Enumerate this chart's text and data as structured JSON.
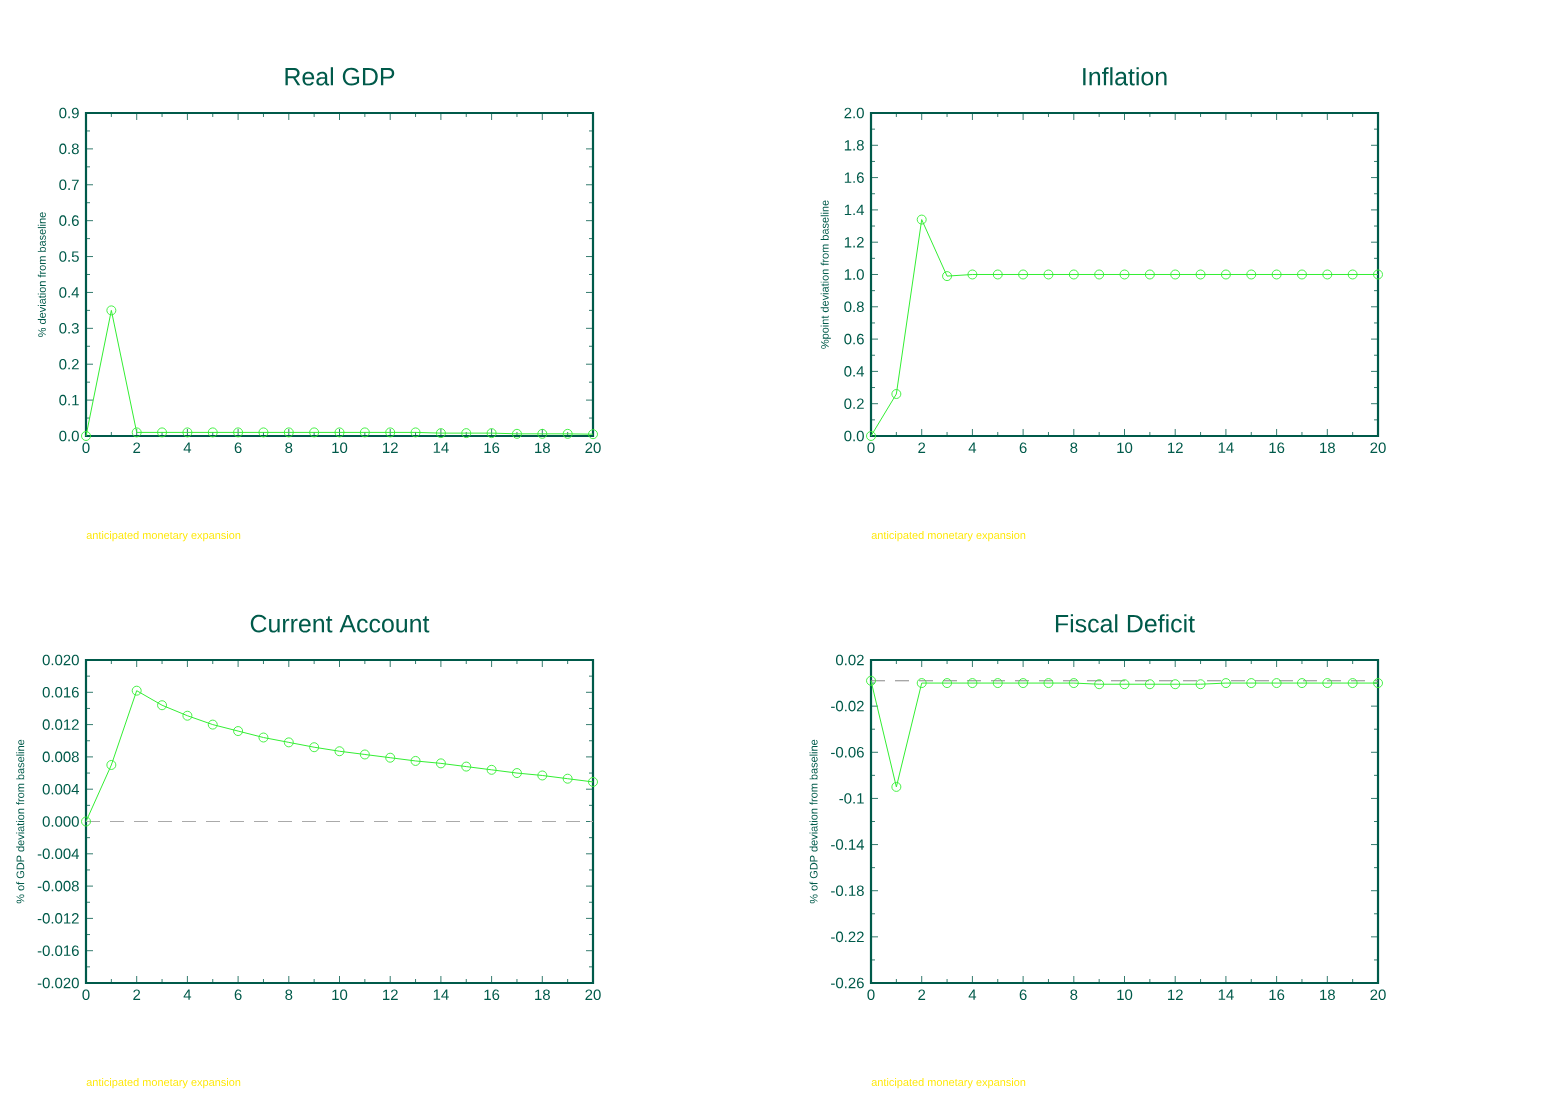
{
  "chart_data": [
    {
      "type": "line",
      "title": "Real GDP",
      "ylabel": "% deviation from baseline",
      "annotations": [
        "anticipated monetary expansion"
      ],
      "x": [
        0,
        1,
        2,
        3,
        4,
        5,
        6,
        7,
        8,
        9,
        10,
        11,
        12,
        13,
        14,
        15,
        16,
        17,
        18,
        19,
        20
      ],
      "series": [
        {
          "color": "#33ee33",
          "values": [
            0.0,
            0.35,
            0.01,
            0.01,
            0.01,
            0.01,
            0.01,
            0.01,
            0.01,
            0.01,
            0.01,
            0.01,
            0.01,
            0.01,
            0.008,
            0.008,
            0.008,
            0.006,
            0.006,
            0.006,
            0.005
          ]
        }
      ],
      "xlim": [
        0,
        20
      ],
      "xticks": [
        0,
        2,
        4,
        6,
        8,
        10,
        12,
        14,
        16,
        18,
        20
      ],
      "ylim": [
        0,
        0.9
      ],
      "yticks": [
        {
          "value": 0,
          "label": "0.0"
        },
        {
          "value": 0.1,
          "label": "0.1"
        },
        {
          "value": 0.2,
          "label": "0.2"
        },
        {
          "value": 0.3,
          "label": "0.3"
        },
        {
          "value": 0.4,
          "label": "0.4"
        },
        {
          "value": 0.5,
          "label": "0.5"
        },
        {
          "value": 0.6,
          "label": "0.6"
        },
        {
          "value": 0.7,
          "label": "0.7"
        },
        {
          "value": 0.8,
          "label": "0.8"
        },
        {
          "value": 0.9,
          "label": "0.9"
        }
      ],
      "marker": "circle"
    },
    {
      "type": "line",
      "title": "Inflation",
      "ylabel": "%point deviation from baseline",
      "annotations": [
        "anticipated monetary expansion"
      ],
      "x": [
        0,
        1,
        2,
        3,
        4,
        5,
        6,
        7,
        8,
        9,
        10,
        11,
        12,
        13,
        14,
        15,
        16,
        17,
        18,
        19,
        20
      ],
      "series": [
        {
          "color": "#33ee33",
          "values": [
            0.0,
            0.26,
            1.34,
            0.99,
            1.0,
            1.0,
            1.0,
            1.0,
            1.0,
            1.0,
            1.0,
            1.0,
            1.0,
            1.0,
            1.0,
            1.0,
            1.0,
            1.0,
            1.0,
            1.0,
            1.0
          ]
        }
      ],
      "xlim": [
        0,
        20
      ],
      "xticks": [
        0,
        2,
        4,
        6,
        8,
        10,
        12,
        14,
        16,
        18,
        20
      ],
      "ylim": [
        0,
        2.0
      ],
      "yticks": [
        {
          "value": 0,
          "label": "0.0"
        },
        {
          "value": 0.2,
          "label": "0.2"
        },
        {
          "value": 0.4,
          "label": "0.4"
        },
        {
          "value": 0.6,
          "label": "0.6"
        },
        {
          "value": 0.8,
          "label": "0.8"
        },
        {
          "value": 1.0,
          "label": "1.0"
        },
        {
          "value": 1.2,
          "label": "1.2"
        },
        {
          "value": 1.4,
          "label": "1.4"
        },
        {
          "value": 1.6,
          "label": "1.6"
        },
        {
          "value": 1.8,
          "label": "1.8"
        },
        {
          "value": 2.0,
          "label": "2.0"
        }
      ],
      "marker": "circle"
    },
    {
      "type": "line",
      "title": "Current Account",
      "ylabel": "% of GDP deviation from baseline",
      "annotations": [
        "anticipated monetary expansion"
      ],
      "x": [
        0,
        1,
        2,
        3,
        4,
        5,
        6,
        7,
        8,
        9,
        10,
        11,
        12,
        13,
        14,
        15,
        16,
        17,
        18,
        19,
        20
      ],
      "series": [
        {
          "color": "#33ee33",
          "values": [
            0.0,
            0.007,
            0.0162,
            0.0144,
            0.0131,
            0.012,
            0.0112,
            0.0104,
            0.0098,
            0.0092,
            0.0087,
            0.0083,
            0.0079,
            0.0075,
            0.0072,
            0.0068,
            0.0064,
            0.006,
            0.0057,
            0.0053,
            0.0049
          ]
        }
      ],
      "xlim": [
        0,
        20
      ],
      "xticks": [
        0,
        2,
        4,
        6,
        8,
        10,
        12,
        14,
        16,
        18,
        20
      ],
      "ylim": [
        -0.02,
        0.02
      ],
      "yticks": [
        {
          "value": -0.02,
          "label": "-0.020"
        },
        {
          "value": -0.016,
          "label": "-0.016"
        },
        {
          "value": -0.012,
          "label": "-0.012"
        },
        {
          "value": -0.008,
          "label": "-0.008"
        },
        {
          "value": -0.004,
          "label": "-0.004"
        },
        {
          "value": 0,
          "label": "0.000"
        },
        {
          "value": 0.004,
          "label": "0.004"
        },
        {
          "value": 0.008,
          "label": "0.008"
        },
        {
          "value": 0.012,
          "label": "0.012"
        },
        {
          "value": 0.016,
          "label": "0.016"
        },
        {
          "value": 0.02,
          "label": "0.020"
        }
      ],
      "ref_lines": [
        {
          "axis": "y",
          "value": 0,
          "color": "#aaaaaa",
          "line_style": "dashed"
        }
      ],
      "marker": "circle"
    },
    {
      "type": "line",
      "title": "Fiscal Deficit",
      "ylabel": "% of GDP deviation from baseline",
      "annotations": [
        "anticipated monetary expansion"
      ],
      "x": [
        0,
        1,
        2,
        3,
        4,
        5,
        6,
        7,
        8,
        9,
        10,
        11,
        12,
        13,
        14,
        15,
        16,
        17,
        18,
        19,
        20
      ],
      "series": [
        {
          "color": "#33ee33",
          "values": [
            0.002,
            -0.09,
            0.0,
            0.0,
            0.0,
            0.0,
            0.0,
            0.0,
            0.0,
            -0.001,
            -0.001,
            -0.001,
            -0.001,
            -0.001,
            0.0,
            0.0,
            0.0,
            0.0,
            0.0,
            0.0,
            0.0
          ]
        }
      ],
      "xlim": [
        0,
        20
      ],
      "xticks": [
        0,
        2,
        4,
        6,
        8,
        10,
        12,
        14,
        16,
        18,
        20
      ],
      "ylim": [
        -0.26,
        0.02
      ],
      "yticks": [
        -0.26,
        -0.22,
        -0.18,
        -0.14,
        -0.1,
        -0.06,
        -0.02,
        0.02
      ],
      "ref_lines": [
        {
          "axis": "y",
          "value": 0.002,
          "color": "#888888",
          "line_style": "dashed"
        }
      ],
      "marker": "circle"
    }
  ]
}
